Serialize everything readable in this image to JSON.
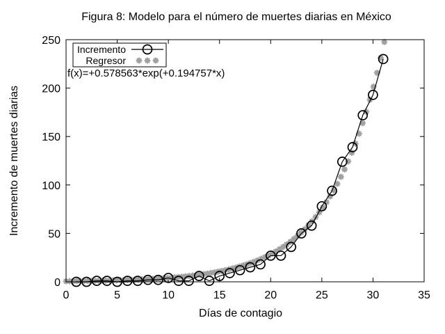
{
  "colors": {
    "background": "#ffffff",
    "ink": "#000000",
    "regressor_gray": "#a0a0a0"
  },
  "figure": {
    "title": "Figura 8: Modelo para el número de muertes diarias en México",
    "xlabel": "Días de contagio",
    "ylabel": "Incremento de muertes diarias",
    "fit_label": "f(x)=+0.578563*exp(+0.194757*x)"
  },
  "chart_data": {
    "type": "line",
    "title": "Figura 8: Modelo para el número de muertes diarias en México",
    "xlabel": "Días de contagio",
    "ylabel": "Incremento de muertes diarias",
    "xlim": [
      0,
      35
    ],
    "ylim": [
      0,
      250
    ],
    "xticks": [
      0,
      5,
      10,
      15,
      20,
      25,
      30,
      35
    ],
    "yticks": [
      0,
      50,
      100,
      150,
      200,
      250
    ],
    "grid": false,
    "legend_position": "top-left",
    "annotation": "f(x)=+0.578563*exp(+0.194757*x)",
    "series": [
      {
        "name": "Incremento",
        "style": "line-with-open-circles",
        "color": "#000000",
        "x": [
          1,
          2,
          3,
          4,
          5,
          6,
          7,
          8,
          9,
          10,
          11,
          12,
          13,
          14,
          15,
          16,
          17,
          18,
          19,
          20,
          21,
          22,
          23,
          24,
          25,
          26,
          27,
          28,
          29,
          30,
          31
        ],
        "y": [
          0,
          0,
          1,
          1,
          0,
          1,
          1,
          2,
          2,
          4,
          1,
          1,
          6,
          1,
          6,
          9,
          12,
          15,
          18,
          27,
          27,
          36,
          50,
          58,
          78,
          94,
          124,
          139,
          172,
          193,
          230
        ]
      },
      {
        "name": "Regresor",
        "style": "star-points",
        "color": "#a0a0a0",
        "model": {
          "form": "a*exp(b*x)",
          "a": 0.578563,
          "b": 0.194757
        },
        "sample_range": [
          0,
          35
        ],
        "samples": 100,
        "clip_y_max": 250
      }
    ]
  }
}
